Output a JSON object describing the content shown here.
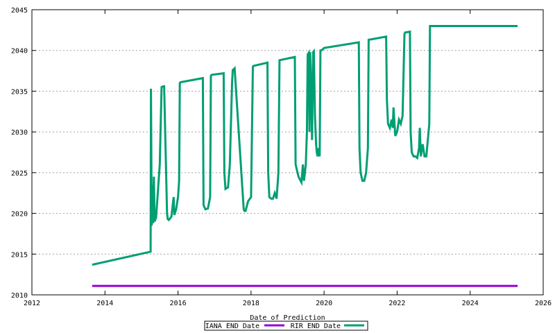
{
  "chart_data": {
    "type": "line",
    "title": "",
    "xlabel": "Date of Prediction",
    "ylabel": "",
    "xlim": [
      2012,
      2026
    ],
    "ylim": [
      2010,
      2045
    ],
    "x_ticks": [
      "2012",
      "2014",
      "2016",
      "2018",
      "2020",
      "2022",
      "2024",
      "2026"
    ],
    "y_ticks": [
      "2010",
      "2015",
      "2020",
      "2025",
      "2030",
      "2035",
      "2040",
      "2045"
    ],
    "grid": true,
    "legend_position": "bottom-center",
    "series": [
      {
        "name": "IANA END Date",
        "color": "#9400d3",
        "x": [
          2013.65,
          2025.3
        ],
        "y": [
          2011.1,
          2011.1
        ]
      },
      {
        "name": "RIR END Date",
        "color": "#009e73",
        "x": [
          2013.65,
          2015.25,
          2015.26,
          2015.28,
          2015.3,
          2015.32,
          2015.34,
          2015.36,
          2015.4,
          2015.5,
          2015.55,
          2015.6,
          2015.62,
          2015.7,
          2015.72,
          2015.75,
          2015.82,
          2015.88,
          2015.9,
          2015.95,
          2016.0,
          2016.03,
          2016.05,
          2016.07,
          2016.68,
          2016.7,
          2016.75,
          2016.82,
          2016.88,
          2016.9,
          2016.92,
          2017.25,
          2017.27,
          2017.3,
          2017.37,
          2017.42,
          2017.48,
          2017.5,
          2017.53,
          2017.55,
          2017.8,
          2017.82,
          2017.85,
          2017.92,
          2018.0,
          2018.05,
          2018.07,
          2018.45,
          2018.47,
          2018.5,
          2018.55,
          2018.6,
          2018.65,
          2018.7,
          2018.75,
          2018.78,
          2019.2,
          2019.22,
          2019.3,
          2019.38,
          2019.42,
          2019.45,
          2019.5,
          2019.53,
          2019.55,
          2019.58,
          2019.6,
          2019.62,
          2019.65,
          2019.67,
          2019.7,
          2019.72,
          2019.75,
          2019.78,
          2019.8,
          2019.82,
          2019.85,
          2019.88,
          2019.9,
          2019.92,
          2019.95,
          2019.98,
          2020.0,
          2020.95,
          2020.97,
          2021.0,
          2021.05,
          2021.1,
          2021.15,
          2021.2,
          2021.22,
          2021.7,
          2021.72,
          2021.75,
          2021.8,
          2021.85,
          2021.88,
          2021.9,
          2021.95,
          2022.0,
          2022.05,
          2022.1,
          2022.15,
          2022.2,
          2022.22,
          2022.35,
          2022.37,
          2022.4,
          2022.45,
          2022.5,
          2022.55,
          2022.6,
          2022.62,
          2022.65,
          2022.7,
          2022.75,
          2022.8,
          2022.82,
          2022.85,
          2022.88,
          2022.9,
          2022.92,
          2025.3
        ],
        "y": [
          2013.7,
          2015.3,
          2035.3,
          2018.5,
          2023.5,
          2018.8,
          2024.5,
          2019.0,
          2019.5,
          2026.0,
          2035.5,
          2035.6,
          2035.6,
          2020.0,
          2019.3,
          2019.2,
          2019.6,
          2022.0,
          2019.8,
          2020.5,
          2022.0,
          2024.0,
          2036.0,
          2036.1,
          2036.6,
          2021.0,
          2020.5,
          2020.6,
          2022.0,
          2036.9,
          2037.0,
          2037.2,
          2025.0,
          2023.0,
          2023.2,
          2026.0,
          2036.0,
          2037.6,
          2037.7,
          2037.8,
          2020.5,
          2020.3,
          2020.3,
          2021.5,
          2022.0,
          2038.0,
          2038.1,
          2038.5,
          2025.0,
          2022.0,
          2021.8,
          2021.8,
          2022.5,
          2021.8,
          2025.0,
          2038.8,
          2039.2,
          2026.0,
          2024.5,
          2023.8,
          2026.0,
          2024.0,
          2026.0,
          2030.0,
          2039.5,
          2039.7,
          2030.0,
          2039.8,
          2035.0,
          2029.0,
          2039.8,
          2039.9,
          2032.0,
          2028.5,
          2027.5,
          2027.0,
          2028.0,
          2027.0,
          2040.0,
          2040.0,
          2040.1,
          2040.2,
          2040.3,
          2041.0,
          2028.0,
          2025.0,
          2024.0,
          2024.0,
          2025.0,
          2028.0,
          2041.3,
          2041.7,
          2034.0,
          2031.0,
          2030.5,
          2031.5,
          2030.5,
          2033.0,
          2029.5,
          2030.0,
          2031.5,
          2031.0,
          2032.0,
          2042.0,
          2042.2,
          2042.3,
          2030.0,
          2027.5,
          2027.0,
          2027.0,
          2026.8,
          2028.0,
          2030.5,
          2027.0,
          2028.5,
          2027.0,
          2027.0,
          2028.0,
          2029.5,
          2031.0,
          2043.0,
          2043.0,
          2043.0
        ]
      }
    ]
  }
}
